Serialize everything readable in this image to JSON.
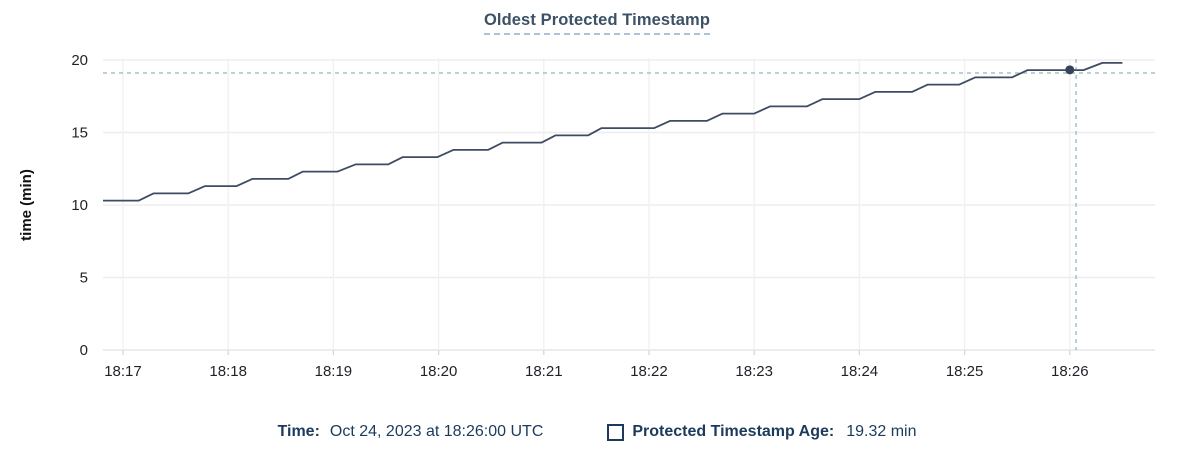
{
  "header": {
    "title": "Oldest Protected Timestamp"
  },
  "tooltip": {
    "time_label": "Time:",
    "time_value": "Oct 24, 2023 at 18:26:00 UTC",
    "series_label": "Protected Timestamp Age:",
    "series_value": "19.32 min"
  },
  "colors": {
    "title_text": "#3d5166",
    "title_underline": "#aec4d6",
    "legend_text": "#1c3a5c",
    "series_line": "#3e4c63",
    "hover_dot": "#364459",
    "crosshair": "#a9bfc9",
    "gridline_h": "#ededee",
    "gridline_v": "#f1f1f2",
    "axis_line": "#e4e6e8",
    "tick_mark": "#cfd4d9",
    "tick_label": "#1f2228",
    "axis_title": "#111111"
  },
  "chart_data": {
    "type": "line",
    "title": "Oldest Protected Timestamp",
    "xlabel": "",
    "ylabel": "time (min)",
    "ylim": [
      0,
      20
    ],
    "yticks": [
      0,
      5,
      10,
      15,
      20
    ],
    "xtick_labels": [
      "18:17",
      "18:18",
      "18:19",
      "18:20",
      "18:21",
      "18:22",
      "18:23",
      "18:24",
      "18:25",
      "18:26"
    ],
    "xtick_minutes": [
      0,
      1,
      2,
      3,
      4,
      5,
      6,
      7,
      8,
      9
    ],
    "xlim_minutes": [
      -0.19,
      9.81
    ],
    "grid": true,
    "legend_position": "bottom",
    "series": [
      {
        "name": "Protected Timestamp Age",
        "unit": "min",
        "points": [
          [
            -0.19,
            10.3
          ],
          [
            0.15,
            10.3
          ],
          [
            0.29,
            10.8
          ],
          [
            0.62,
            10.8
          ],
          [
            0.78,
            11.3
          ],
          [
            1.08,
            11.3
          ],
          [
            1.23,
            11.8
          ],
          [
            1.57,
            11.8
          ],
          [
            1.71,
            12.3
          ],
          [
            2.04,
            12.3
          ],
          [
            2.21,
            12.8
          ],
          [
            2.52,
            12.8
          ],
          [
            2.66,
            13.3
          ],
          [
            2.99,
            13.3
          ],
          [
            3.14,
            13.8
          ],
          [
            3.47,
            13.8
          ],
          [
            3.61,
            14.3
          ],
          [
            3.98,
            14.3
          ],
          [
            4.11,
            14.8
          ],
          [
            4.42,
            14.8
          ],
          [
            4.55,
            15.3
          ],
          [
            5.05,
            15.3
          ],
          [
            5.2,
            15.8
          ],
          [
            5.55,
            15.8
          ],
          [
            5.7,
            16.3
          ],
          [
            6.0,
            16.3
          ],
          [
            6.15,
            16.8
          ],
          [
            6.5,
            16.8
          ],
          [
            6.65,
            17.3
          ],
          [
            7.0,
            17.3
          ],
          [
            7.15,
            17.8
          ],
          [
            7.5,
            17.8
          ],
          [
            7.65,
            18.3
          ],
          [
            7.95,
            18.3
          ],
          [
            8.1,
            18.8
          ],
          [
            8.45,
            18.8
          ],
          [
            8.6,
            19.3
          ],
          [
            9.13,
            19.3
          ],
          [
            9.31,
            19.8
          ],
          [
            9.5,
            19.8
          ]
        ]
      }
    ],
    "hover": {
      "time_label": "18:26:00",
      "x_minutes": 9.0,
      "value": 19.32,
      "crosshair_x_minutes": 9.06,
      "crosshair_value": 19.1
    }
  }
}
